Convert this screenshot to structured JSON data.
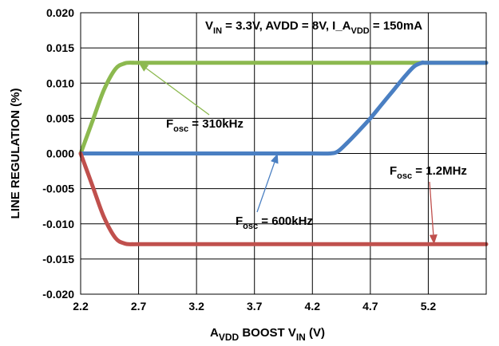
{
  "chart_data": {
    "type": "line",
    "title": "",
    "xlabel": {
      "main": "A",
      "sub": "VDD",
      "main2": " BOOST V",
      "sub2": "IN",
      "tail": " (V)"
    },
    "ylabel": "LINE REGULATION (%)",
    "xlim": [
      2.2,
      5.7
    ],
    "ylim": [
      -0.02,
      0.02
    ],
    "x_ticks": [
      "2.2",
      "2.7",
      "3.2",
      "3.7",
      "4.2",
      "4.7",
      "5.2"
    ],
    "y_ticks": [
      "0.020",
      "0.015",
      "0.010",
      "0.005",
      "0.000",
      "-0.005",
      "-0.010",
      "-0.015",
      "-0.020"
    ],
    "grid": true,
    "condition": {
      "p1": "V",
      "s1": "IN",
      "p2": " = 3.3V, AVDD = 8V, I_A",
      "s2": "VDD",
      "p3": " = 150mA"
    },
    "series": [
      {
        "color": "#8cb94f",
        "x": [
          2.2,
          2.3,
          2.4,
          2.5,
          2.58,
          2.65,
          2.7,
          3.2,
          3.7,
          4.2,
          4.7,
          5.2,
          5.7
        ],
        "y": [
          0.0,
          0.0045,
          0.009,
          0.012,
          0.0128,
          0.0129,
          0.0129,
          0.0129,
          0.0129,
          0.0129,
          0.0129,
          0.0129,
          0.0129
        ]
      },
      {
        "color": "#4a7fc2",
        "x": [
          2.2,
          2.7,
          3.2,
          3.7,
          4.2,
          4.35,
          4.42,
          4.5,
          4.6,
          4.7,
          4.8,
          4.9,
          5.0,
          5.08,
          5.15,
          5.2,
          5.7
        ],
        "y": [
          0.0,
          0.0,
          0.0,
          0.0,
          0.0,
          0.0,
          0.0003,
          0.0015,
          0.0032,
          0.005,
          0.007,
          0.009,
          0.011,
          0.0124,
          0.0129,
          0.0129,
          0.0129
        ]
      },
      {
        "color": "#c0504d",
        "x": [
          2.2,
          2.3,
          2.4,
          2.5,
          2.58,
          2.65,
          2.7,
          3.2,
          3.7,
          4.2,
          4.7,
          5.2,
          5.7
        ],
        "y": [
          0.0,
          -0.0045,
          -0.009,
          -0.012,
          -0.0128,
          -0.0129,
          -0.0129,
          -0.0129,
          -0.0129,
          -0.0129,
          -0.0129,
          -0.0129,
          -0.0129
        ]
      }
    ],
    "annotations": [
      {
        "prefix": "F",
        "sub": "osc",
        "suffix": " = 310kHz",
        "color": "#8cb94f",
        "arrow_to": [
          2.7,
          0.0129
        ]
      },
      {
        "prefix": "F",
        "sub": "osc",
        "suffix": " = 600kHz",
        "color": "#4a7fc2",
        "arrow_to": [
          3.9,
          0.0
        ]
      },
      {
        "prefix": "F",
        "sub": "osc",
        "suffix": " = 1.2MHz",
        "color": "#c0504d",
        "arrow_to": [
          5.25,
          -0.0129
        ]
      }
    ]
  }
}
